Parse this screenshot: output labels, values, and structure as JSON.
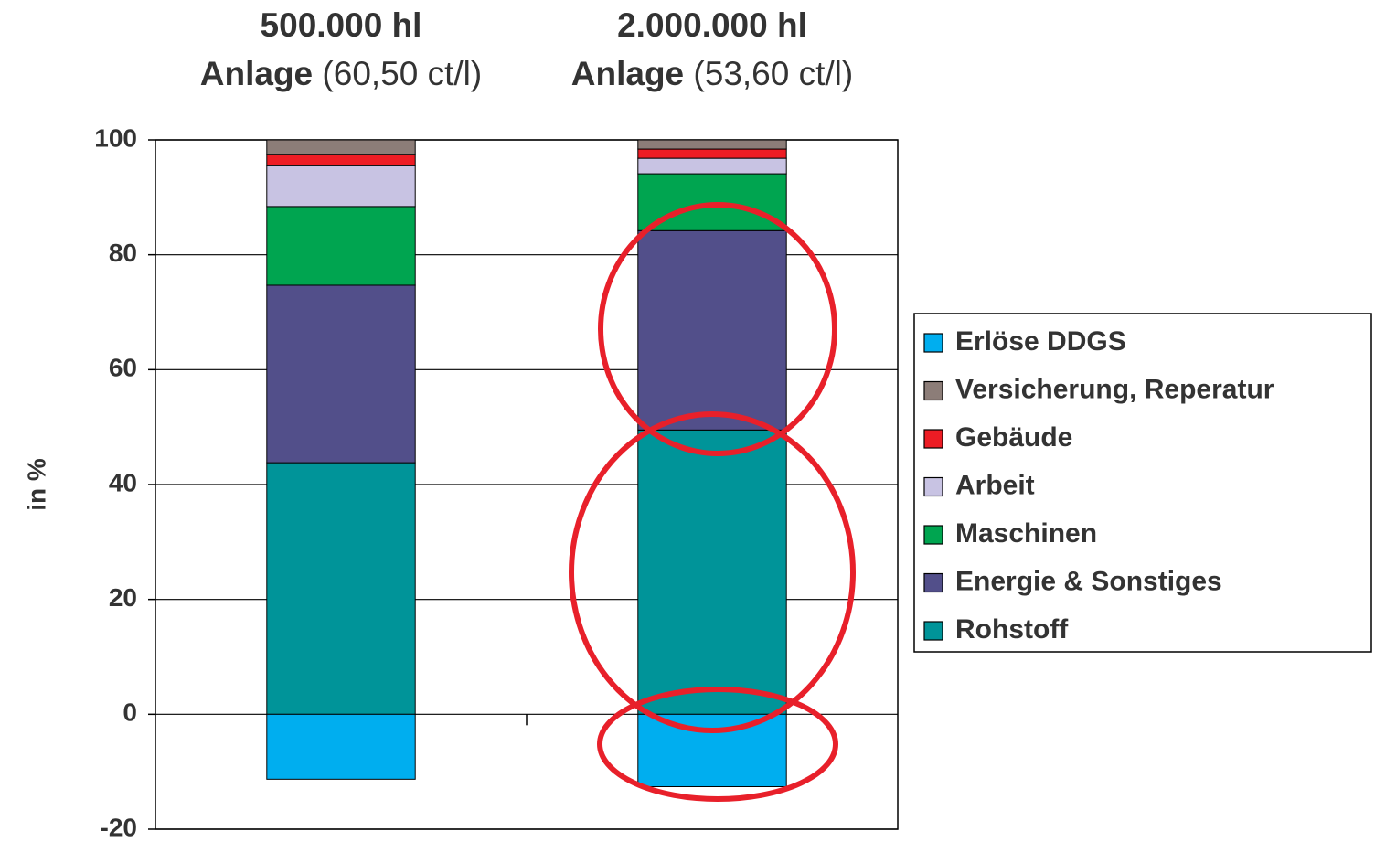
{
  "chart_data": {
    "type": "stacked_bar",
    "categories": [
      "500.000 hl",
      "2.000.000 hl"
    ],
    "category_notes": [
      {
        "bold": "Anlage",
        "text": "(60,50 ct/l)"
      },
      {
        "bold": "Anlage",
        "text": "(53,60 ct/l)"
      }
    ],
    "y_label": "in %",
    "ylim": [
      -20,
      100
    ],
    "yticks": [
      -20,
      0,
      20,
      40,
      60,
      80,
      100
    ],
    "grid": true,
    "legend": "right",
    "series": [
      {
        "name": "Rohstoff",
        "color": "#009499",
        "values": [
          43.8,
          49.5
        ]
      },
      {
        "name": "Energie & Sonstiges",
        "color": "#524f8a",
        "values": [
          30.9,
          34.7
        ]
      },
      {
        "name": "Maschinen",
        "color": "#00a550",
        "values": [
          13.7,
          9.9
        ]
      },
      {
        "name": "Arbeit",
        "color": "#c8c3e3",
        "values": [
          7.1,
          2.7
        ]
      },
      {
        "name": "Gebäude",
        "color": "#ed1c24",
        "values": [
          2.0,
          1.6
        ]
      },
      {
        "name": "Versicherung, Reperatur",
        "color": "#8c7d78",
        "values": [
          2.5,
          1.6
        ]
      },
      {
        "name": "Erlöse DDGS",
        "color": "#00aeef",
        "values": [
          -11.3,
          -12.6
        ]
      }
    ]
  }
}
